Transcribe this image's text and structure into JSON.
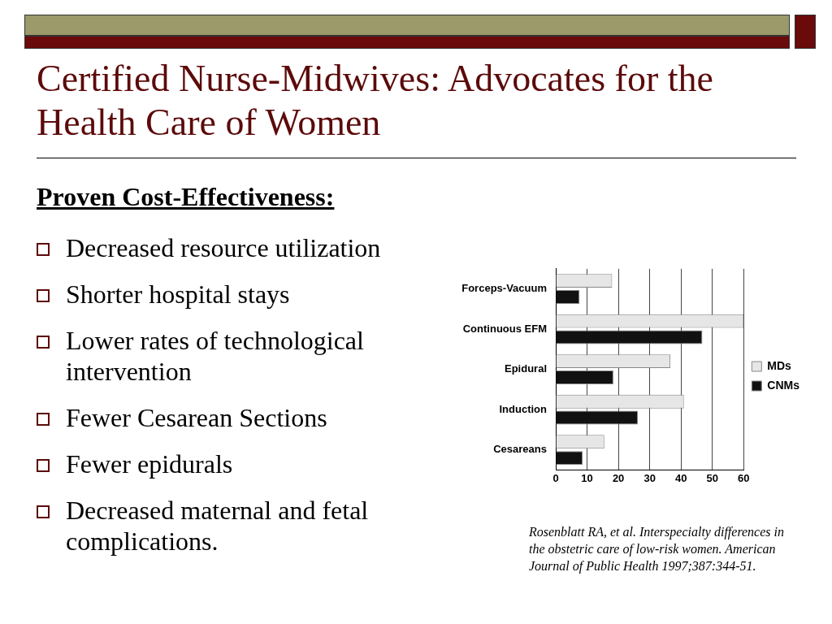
{
  "chart_data": {
    "type": "bar",
    "orientation": "horizontal",
    "title": "Certified Nurse-Midwives: Advocates for the Health Care of Women",
    "subtitle": "Proven Cost-Effectiveness:",
    "categories": [
      "Forceps-Vacuum",
      "Continuous EFM",
      "Epidural",
      "Induction",
      "Cesareans"
    ],
    "series": [
      {
        "name": "MDs",
        "color": "#e6e6e6",
        "values": [
          18,
          60,
          36.6,
          40.9,
          15.5
        ]
      },
      {
        "name": "CNMs",
        "color": "#111111",
        "values": [
          7.6,
          46.8,
          18.4,
          26.2,
          8.6
        ]
      }
    ],
    "xlim": [
      0,
      60
    ],
    "xticks": [
      0,
      10,
      20,
      30,
      40,
      50,
      60
    ],
    "grid": "x",
    "legend": "right",
    "annotations": [
      "Decreased resource utilization",
      "Shorter hospital stays",
      "Lower rates of technological intervention",
      "Fewer Cesarean Sections",
      "Fewer epidurals",
      "Decreased maternal and fetal complications.",
      "Rosenblatt RA, et al. Interspecialty differences in the obstetric care of low-risk women.  American Journal of Public Health 1997;387:344-51."
    ]
  }
}
